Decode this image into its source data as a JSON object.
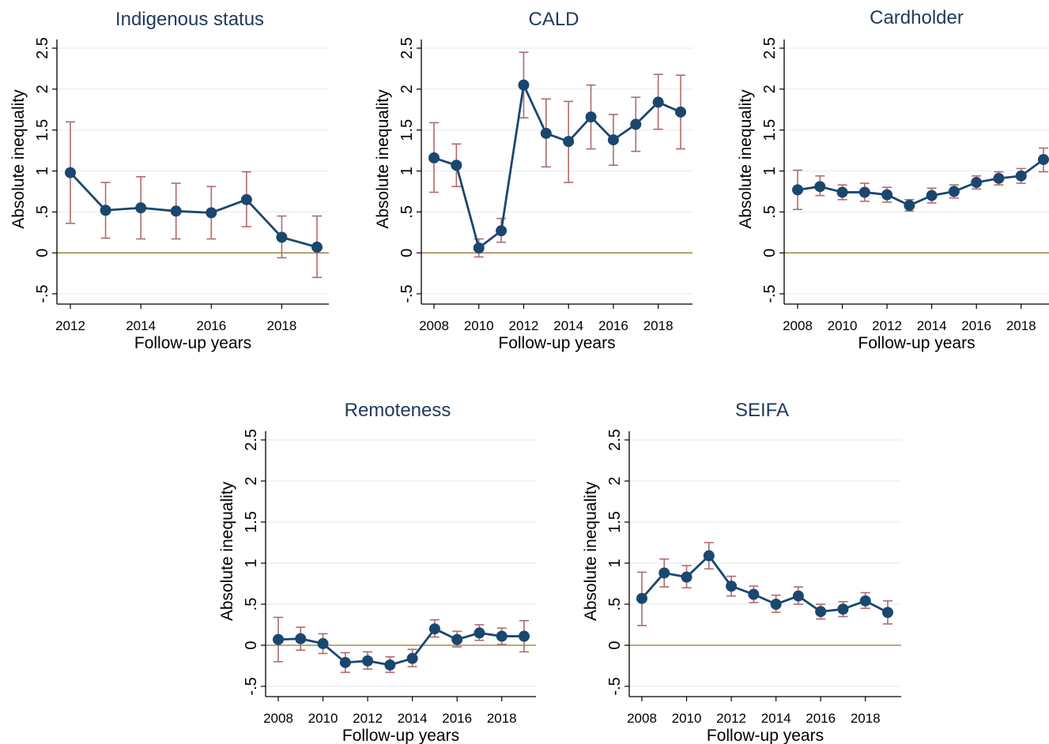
{
  "axis_labels": {
    "ylabel": "Absolute inequality",
    "xlabel": "Follow-up years"
  },
  "colors": {
    "title": "#1f3a5c",
    "series": "#1a476f",
    "error_bar": "#b06a6a",
    "reference_line": "#a68b4e",
    "gridline": "#e6eef0",
    "axis": "#000000"
  },
  "chart_data": [
    {
      "type": "line",
      "title": "Indigenous status",
      "xlabel": "Follow-up years",
      "ylabel": "Absolute inequality",
      "ylim": [
        -0.5,
        2.5
      ],
      "yticks": [
        -0.5,
        0,
        0.5,
        1,
        1.5,
        2,
        2.5
      ],
      "ytick_labels": [
        "-.5",
        "0",
        ".5",
        "1",
        "1.5",
        "2",
        "2.5"
      ],
      "xlim": [
        2012,
        2019
      ],
      "xticks": [
        2012,
        2014,
        2016,
        2018
      ],
      "reference_line": 0,
      "grid": true,
      "x": [
        2012,
        2013,
        2014,
        2015,
        2016,
        2017,
        2018,
        2019
      ],
      "values": [
        0.98,
        0.52,
        0.55,
        0.51,
        0.49,
        0.65,
        0.19,
        0.07
      ],
      "ci_lower": [
        0.36,
        0.18,
        0.17,
        0.17,
        0.17,
        0.32,
        -0.06,
        -0.3
      ],
      "ci_upper": [
        1.6,
        0.86,
        0.93,
        0.85,
        0.81,
        0.99,
        0.45,
        0.45
      ]
    },
    {
      "type": "line",
      "title": "CALD",
      "xlabel": "Follow-up years",
      "ylabel": "Absolute inequality",
      "ylim": [
        -0.5,
        2.5
      ],
      "yticks": [
        -0.5,
        0,
        0.5,
        1,
        1.5,
        2,
        2.5
      ],
      "ytick_labels": [
        "-.5",
        "0",
        ".5",
        "1",
        "1.5",
        "2",
        "2.5"
      ],
      "xlim": [
        2008,
        2019
      ],
      "xticks": [
        2008,
        2010,
        2012,
        2014,
        2016,
        2018
      ],
      "reference_line": 0,
      "grid": true,
      "x": [
        2008,
        2009,
        2010,
        2011,
        2012,
        2013,
        2014,
        2015,
        2016,
        2017,
        2018,
        2019
      ],
      "values": [
        1.16,
        1.07,
        0.06,
        0.27,
        2.05,
        1.46,
        1.36,
        1.66,
        1.38,
        1.57,
        1.84,
        1.72
      ],
      "ci_lower": [
        0.74,
        0.81,
        -0.05,
        0.13,
        1.65,
        1.05,
        0.86,
        1.27,
        1.07,
        1.24,
        1.51,
        1.27
      ],
      "ci_upper": [
        1.59,
        1.33,
        0.17,
        0.42,
        2.45,
        1.88,
        1.85,
        2.05,
        1.69,
        1.9,
        2.18,
        2.17
      ]
    },
    {
      "type": "line",
      "title": "Cardholder",
      "xlabel": "Follow-up years",
      "ylabel": "Absolute inequality",
      "ylim": [
        -0.5,
        2.5
      ],
      "yticks": [
        -0.5,
        0,
        0.5,
        1,
        1.5,
        2,
        2.5
      ],
      "ytick_labels": [
        "-.5",
        "0",
        ".5",
        "1",
        "1.5",
        "2",
        "2.5"
      ],
      "xlim": [
        2008,
        2019
      ],
      "xticks": [
        2008,
        2010,
        2012,
        2014,
        2016,
        2018
      ],
      "reference_line": 0,
      "grid": true,
      "x": [
        2008,
        2009,
        2010,
        2011,
        2012,
        2013,
        2014,
        2015,
        2016,
        2017,
        2018,
        2019
      ],
      "values": [
        0.77,
        0.81,
        0.74,
        0.74,
        0.71,
        0.58,
        0.7,
        0.75,
        0.86,
        0.91,
        0.94,
        1.14
      ],
      "ci_lower": [
        0.53,
        0.7,
        0.65,
        0.63,
        0.62,
        0.51,
        0.61,
        0.67,
        0.78,
        0.83,
        0.85,
        0.99
      ],
      "ci_upper": [
        1.01,
        0.94,
        0.83,
        0.85,
        0.8,
        0.65,
        0.79,
        0.83,
        0.94,
        0.99,
        1.03,
        1.28
      ]
    },
    {
      "type": "line",
      "title": "Remoteness",
      "xlabel": "Follow-up years",
      "ylabel": "Absolute inequality",
      "ylim": [
        -0.5,
        2.5
      ],
      "yticks": [
        -0.5,
        0,
        0.5,
        1,
        1.5,
        2,
        2.5
      ],
      "ytick_labels": [
        "-.5",
        "0",
        ".5",
        "1",
        "1.5",
        "2",
        "2.5"
      ],
      "xlim": [
        2008,
        2019
      ],
      "xticks": [
        2008,
        2010,
        2012,
        2014,
        2016,
        2018
      ],
      "reference_line": 0,
      "grid": true,
      "x": [
        2008,
        2009,
        2010,
        2011,
        2012,
        2013,
        2014,
        2015,
        2016,
        2017,
        2018,
        2019
      ],
      "values": [
        0.07,
        0.08,
        0.02,
        -0.21,
        -0.19,
        -0.24,
        -0.16,
        0.2,
        0.07,
        0.15,
        0.11,
        0.11
      ],
      "ci_lower": [
        -0.2,
        -0.06,
        -0.1,
        -0.33,
        -0.29,
        -0.33,
        -0.26,
        0.1,
        -0.02,
        0.06,
        0.01,
        -0.08
      ],
      "ci_upper": [
        0.34,
        0.22,
        0.14,
        -0.09,
        -0.08,
        -0.14,
        -0.05,
        0.31,
        0.17,
        0.25,
        0.21,
        0.3
      ]
    },
    {
      "type": "line",
      "title": "SEIFA",
      "xlabel": "Follow-up years",
      "ylabel": "Absolute inequality",
      "ylim": [
        -0.5,
        2.5
      ],
      "yticks": [
        -0.5,
        0,
        0.5,
        1,
        1.5,
        2,
        2.5
      ],
      "ytick_labels": [
        "-.5",
        "0",
        ".5",
        "1",
        "1.5",
        "2",
        "2.5"
      ],
      "xlim": [
        2008,
        2019
      ],
      "xticks": [
        2008,
        2010,
        2012,
        2014,
        2016,
        2018
      ],
      "reference_line": 0,
      "grid": true,
      "x": [
        2008,
        2009,
        2010,
        2011,
        2012,
        2013,
        2014,
        2015,
        2016,
        2017,
        2018,
        2019
      ],
      "values": [
        0.57,
        0.88,
        0.83,
        1.09,
        0.72,
        0.62,
        0.5,
        0.6,
        0.41,
        0.44,
        0.54,
        0.4
      ],
      "ci_lower": [
        0.24,
        0.71,
        0.7,
        0.93,
        0.6,
        0.52,
        0.4,
        0.5,
        0.32,
        0.35,
        0.45,
        0.26
      ],
      "ci_upper": [
        0.89,
        1.05,
        0.97,
        1.25,
        0.84,
        0.72,
        0.61,
        0.71,
        0.5,
        0.53,
        0.64,
        0.54
      ]
    }
  ]
}
